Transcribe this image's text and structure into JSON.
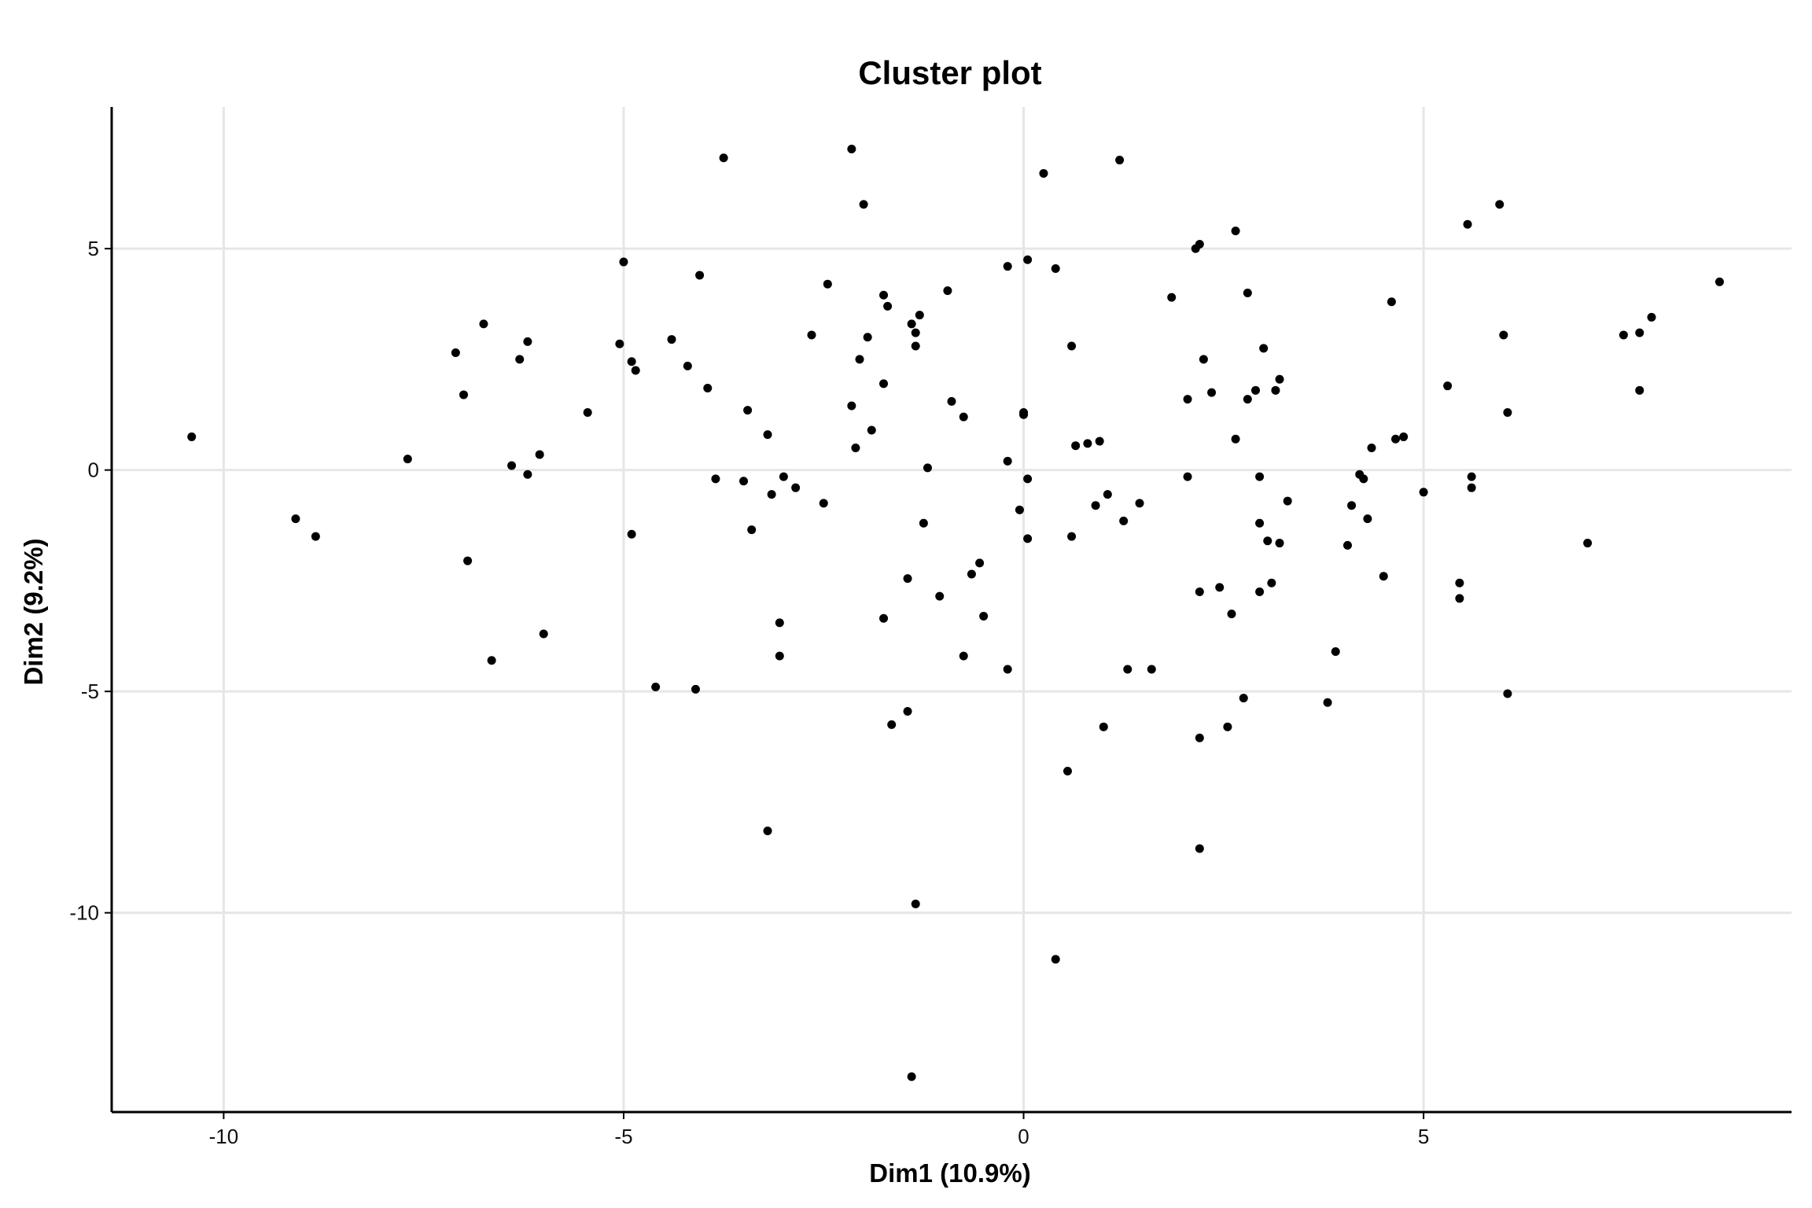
{
  "chart_data": {
    "type": "scatter",
    "title": "Cluster plot",
    "xlabel": "Dim1 (10.9%)",
    "ylabel": "Dim2 (9.2%)",
    "xlim": [
      -11.4,
      9.6
    ],
    "ylim": [
      -14.5,
      8.2
    ],
    "xticks": [
      -10,
      -5,
      0,
      5
    ],
    "yticks": [
      5,
      0,
      -5,
      -10
    ],
    "xtick_labels": [
      "-10",
      "-5",
      "0",
      "5"
    ],
    "ytick_labels": [
      "5",
      "0",
      "-5",
      "-10"
    ],
    "grid": true,
    "point_color": "#000000",
    "points": [
      [
        -10.4,
        0.75
      ],
      [
        -9.1,
        -1.1
      ],
      [
        -8.85,
        -1.5
      ],
      [
        -7.7,
        0.25
      ],
      [
        -7.1,
        2.65
      ],
      [
        -7.0,
        1.7
      ],
      [
        -6.95,
        -2.05
      ],
      [
        -6.75,
        3.3
      ],
      [
        -6.65,
        -4.3
      ],
      [
        -6.4,
        0.1
      ],
      [
        -6.3,
        2.5
      ],
      [
        -6.2,
        2.9
      ],
      [
        -6.2,
        -0.1
      ],
      [
        -6.05,
        0.35
      ],
      [
        -6.0,
        -3.7
      ],
      [
        -5.45,
        1.3
      ],
      [
        -5.05,
        2.85
      ],
      [
        -5.0,
        4.7
      ],
      [
        -4.9,
        2.45
      ],
      [
        -4.85,
        2.25
      ],
      [
        -4.9,
        -1.45
      ],
      [
        -4.6,
        -4.9
      ],
      [
        -4.4,
        2.95
      ],
      [
        -4.2,
        2.35
      ],
      [
        -4.1,
        -4.95
      ],
      [
        -4.05,
        4.4
      ],
      [
        -3.95,
        1.85
      ],
      [
        -3.85,
        -0.2
      ],
      [
        -3.75,
        7.05
      ],
      [
        -3.5,
        -0.25
      ],
      [
        -3.45,
        1.35
      ],
      [
        -3.4,
        -1.35
      ],
      [
        -3.2,
        0.8
      ],
      [
        -3.15,
        -0.55
      ],
      [
        -3.2,
        -8.15
      ],
      [
        -3.05,
        -3.45
      ],
      [
        -3.05,
        -4.2
      ],
      [
        -3.0,
        -0.15
      ],
      [
        -2.85,
        -0.4
      ],
      [
        -2.65,
        3.05
      ],
      [
        -2.5,
        -0.75
      ],
      [
        -2.45,
        4.2
      ],
      [
        -2.15,
        7.25
      ],
      [
        -2.15,
        1.45
      ],
      [
        -2.1,
        0.5
      ],
      [
        -2.05,
        2.5
      ],
      [
        -2.0,
        6.0
      ],
      [
        -1.95,
        3.0
      ],
      [
        -1.9,
        0.9
      ],
      [
        -1.75,
        3.95
      ],
      [
        -1.75,
        -3.35
      ],
      [
        -1.75,
        1.95
      ],
      [
        -1.7,
        3.7
      ],
      [
        -1.65,
        -5.75
      ],
      [
        -1.45,
        -2.45
      ],
      [
        -1.45,
        -5.45
      ],
      [
        -1.4,
        3.3
      ],
      [
        -1.35,
        3.1
      ],
      [
        -1.35,
        2.8
      ],
      [
        -1.3,
        3.5
      ],
      [
        -1.25,
        -1.2
      ],
      [
        -1.2,
        0.05
      ],
      [
        -1.4,
        -13.7
      ],
      [
        -1.35,
        -9.8
      ],
      [
        -1.05,
        -2.85
      ],
      [
        -0.95,
        4.05
      ],
      [
        -0.9,
        1.55
      ],
      [
        -0.75,
        1.2
      ],
      [
        -0.75,
        -4.2
      ],
      [
        -0.65,
        -2.35
      ],
      [
        -0.55,
        -2.1
      ],
      [
        -0.5,
        -3.3
      ],
      [
        -0.2,
        4.6
      ],
      [
        -0.2,
        0.2
      ],
      [
        -0.2,
        -4.5
      ],
      [
        -0.05,
        -0.9
      ],
      [
        0.0,
        1.3
      ],
      [
        0.0,
        1.25
      ],
      [
        0.05,
        4.75
      ],
      [
        0.05,
        -0.2
      ],
      [
        0.05,
        -1.55
      ],
      [
        0.25,
        6.7
      ],
      [
        0.4,
        4.55
      ],
      [
        0.4,
        -11.05
      ],
      [
        0.55,
        -6.8
      ],
      [
        0.6,
        2.8
      ],
      [
        0.6,
        -1.5
      ],
      [
        0.65,
        0.55
      ],
      [
        0.8,
        0.6
      ],
      [
        0.9,
        -0.8
      ],
      [
        0.95,
        0.65
      ],
      [
        1.0,
        -5.8
      ],
      [
        1.05,
        -0.55
      ],
      [
        1.2,
        7.0
      ],
      [
        1.25,
        -1.15
      ],
      [
        1.3,
        -4.5
      ],
      [
        1.45,
        -0.75
      ],
      [
        1.6,
        -4.5
      ],
      [
        1.85,
        3.9
      ],
      [
        2.05,
        1.6
      ],
      [
        2.05,
        -0.15
      ],
      [
        2.15,
        5.0
      ],
      [
        2.2,
        5.1
      ],
      [
        2.2,
        -2.75
      ],
      [
        2.2,
        -6.05
      ],
      [
        2.2,
        -8.55
      ],
      [
        2.25,
        2.5
      ],
      [
        2.35,
        1.75
      ],
      [
        2.45,
        -2.65
      ],
      [
        2.55,
        -5.8
      ],
      [
        2.6,
        -3.25
      ],
      [
        2.65,
        5.4
      ],
      [
        2.65,
        0.7
      ],
      [
        2.75,
        -5.15
      ],
      [
        2.8,
        4.0
      ],
      [
        2.8,
        1.6
      ],
      [
        2.9,
        1.8
      ],
      [
        2.95,
        -0.15
      ],
      [
        2.95,
        -1.2
      ],
      [
        2.95,
        -2.75
      ],
      [
        3.0,
        2.75
      ],
      [
        3.05,
        -1.6
      ],
      [
        3.1,
        -2.55
      ],
      [
        3.15,
        1.8
      ],
      [
        3.2,
        2.05
      ],
      [
        3.2,
        -1.65
      ],
      [
        3.3,
        -0.7
      ],
      [
        3.8,
        -5.25
      ],
      [
        3.9,
        -4.1
      ],
      [
        4.05,
        -1.7
      ],
      [
        4.1,
        -0.8
      ],
      [
        4.2,
        -0.1
      ],
      [
        4.25,
        -0.2
      ],
      [
        4.3,
        -1.1
      ],
      [
        4.35,
        0.5
      ],
      [
        4.5,
        -2.4
      ],
      [
        4.6,
        3.8
      ],
      [
        4.65,
        0.7
      ],
      [
        4.75,
        0.75
      ],
      [
        5.0,
        -0.5
      ],
      [
        5.3,
        1.9
      ],
      [
        5.45,
        -2.55
      ],
      [
        5.45,
        -2.9
      ],
      [
        5.55,
        5.55
      ],
      [
        5.6,
        -0.15
      ],
      [
        5.6,
        -0.4
      ],
      [
        5.95,
        6.0
      ],
      [
        6.0,
        3.05
      ],
      [
        6.05,
        1.3
      ],
      [
        6.05,
        -5.05
      ],
      [
        7.05,
        -1.65
      ],
      [
        7.5,
        3.05
      ],
      [
        7.7,
        3.1
      ],
      [
        7.7,
        1.8
      ],
      [
        7.85,
        3.45
      ],
      [
        8.7,
        4.25
      ]
    ]
  }
}
